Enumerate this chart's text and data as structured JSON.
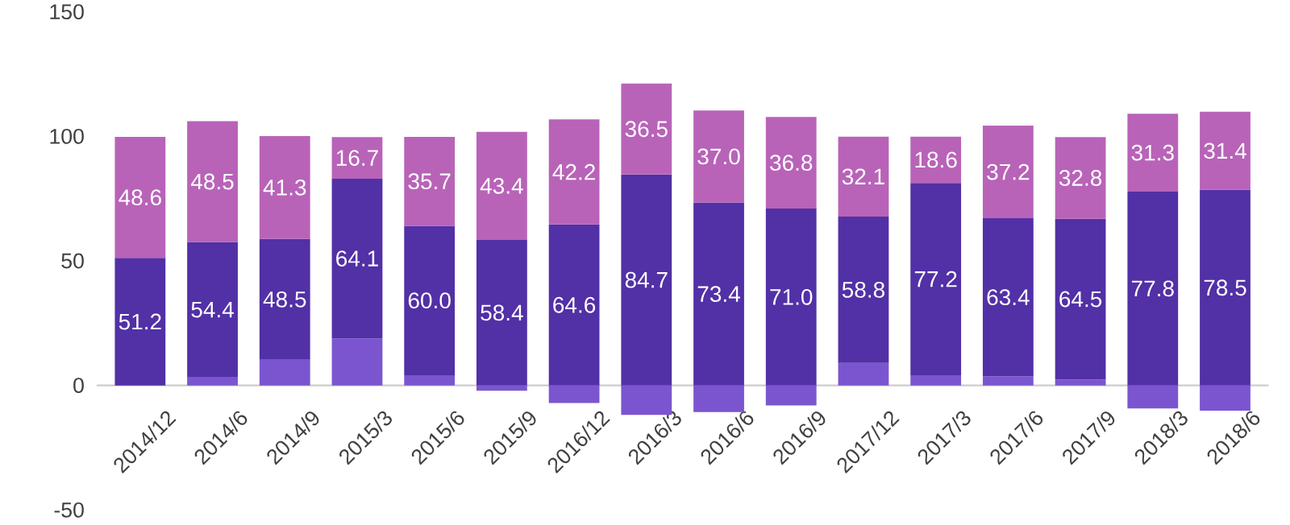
{
  "chart_data": {
    "type": "bar",
    "stacked": true,
    "categories": [
      "2014/12",
      "2014/6",
      "2014/9",
      "2015/3",
      "2015/6",
      "2015/9",
      "2016/12",
      "2016/3",
      "2016/6",
      "2016/9",
      "2017/12",
      "2017/3",
      "2017/6",
      "2017/9",
      "2018/3",
      "2018/6"
    ],
    "series": [
      {
        "color": "#7b55cf",
        "values": [
          0,
          3.2,
          10.3,
          18.9,
          4.1,
          -2.1,
          -7.1,
          -11.8,
          -10.7,
          -8.0,
          9.0,
          4.1,
          3.7,
          2.4,
          -9.2,
          -10.1
        ]
      },
      {
        "color": "#5230a6",
        "values": [
          51.2,
          54.4,
          48.5,
          64.1,
          60.0,
          58.4,
          64.6,
          84.7,
          73.4,
          71.0,
          58.8,
          77.2,
          63.4,
          64.5,
          77.8,
          78.5
        ],
        "value_labels": [
          "51.2",
          "54.4",
          "48.5",
          "64.1",
          "60.0",
          "58.4",
          "64.6",
          "84.7",
          "73.4",
          "71.0",
          "58.8",
          "77.2",
          "63.4",
          "64.5",
          "77.8",
          "78.5"
        ]
      },
      {
        "color": "#b863b8",
        "values": [
          48.6,
          48.5,
          41.3,
          16.7,
          35.7,
          43.4,
          42.2,
          36.5,
          37.0,
          36.8,
          32.1,
          18.6,
          37.2,
          32.8,
          31.3,
          31.4
        ],
        "value_labels": [
          "48.6",
          "48.5",
          "41.3",
          "16.7",
          "35.7",
          "43.4",
          "42.2",
          "36.5",
          "37.0",
          "36.8",
          "32.1",
          "18.6",
          "37.2",
          "32.8",
          "31.3",
          "31.4"
        ]
      }
    ],
    "ylim": [
      -50,
      150
    ],
    "yticks": [
      -50,
      0,
      50,
      100,
      150
    ]
  }
}
